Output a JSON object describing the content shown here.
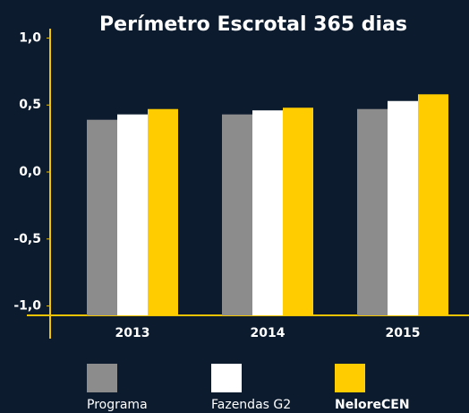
{
  "chart_data": {
    "type": "bar",
    "title": "Perímetro Escrotal 365 dias",
    "categories": [
      "2013",
      "2014",
      "2015"
    ],
    "series": [
      {
        "name": "Programa",
        "color": "#8c8c8c",
        "values": [
          0.39,
          0.43,
          0.47
        ]
      },
      {
        "name": "Fazendas G2",
        "color": "#ffffff",
        "values": [
          0.43,
          0.46,
          0.53
        ]
      },
      {
        "name": "NeloreCEN",
        "color": "#ffcc00",
        "values": [
          0.47,
          0.48,
          0.58
        ]
      }
    ],
    "ylim": [
      -1.07,
      1.07
    ],
    "yticks": [
      {
        "value": 1,
        "label": "1,0"
      },
      {
        "value": 0.5,
        "label": "0,5"
      },
      {
        "value": 0,
        "label": "0,0"
      },
      {
        "value": -0.5,
        "label": "-0,5"
      },
      {
        "value": -1,
        "label": "-1,0"
      }
    ],
    "axis_color": "#f2c300"
  }
}
